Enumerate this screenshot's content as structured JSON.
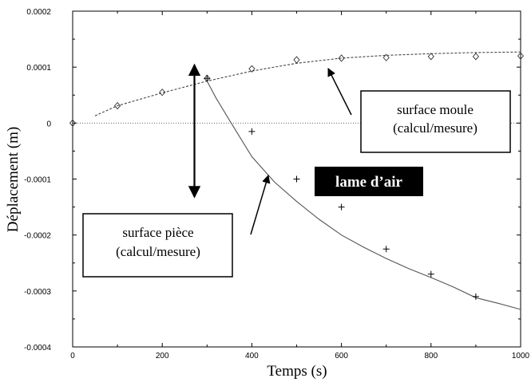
{
  "chart_data": {
    "type": "line",
    "xlabel": "Temps (s)",
    "ylabel": "Déplacement (m)",
    "xlim": [
      0,
      1000
    ],
    "ylim": [
      -0.0004,
      0.0002
    ],
    "x_ticks": [
      "0",
      "200",
      "400",
      "600",
      "800",
      "1000"
    ],
    "y_ticks": [
      "0.0002",
      "0.0001",
      "0",
      "-0.0001",
      "-0.0002",
      "-0.0003",
      "-0.0004"
    ],
    "grid": false,
    "series": [
      {
        "kind": "curve",
        "style": "dashed",
        "x": [
          50,
          100,
          200,
          300,
          400,
          500,
          600,
          700,
          800,
          900,
          1000
        ],
        "y": [
          1.3e-05,
          3.1e-05,
          5.4e-05,
          7.5e-05,
          9.3e-05,
          0.000107,
          0.000116,
          0.000121,
          0.000124,
          0.000126,
          0.000127
        ]
      },
      {
        "kind": "markers",
        "marker": "diamond",
        "x": [
          0,
          100,
          200,
          300,
          400,
          500,
          600,
          700,
          800,
          900,
          1000
        ],
        "y": [
          0.0,
          3.1e-05,
          5.5e-05,
          8e-05,
          9.7e-05,
          0.000113,
          0.000116,
          0.000117,
          0.000119,
          0.000119,
          0.00012
        ]
      },
      {
        "kind": "curve",
        "style": "solid",
        "x": [
          300,
          320,
          350,
          400,
          450,
          500,
          550,
          600,
          650,
          700,
          750,
          800,
          850,
          900,
          950,
          1000
        ],
        "y": [
          7.5e-05,
          4.5e-05,
          5e-06,
          -6e-05,
          -0.000105,
          -0.00014,
          -0.000172,
          -0.0002,
          -0.000222,
          -0.000242,
          -0.00026,
          -0.000276,
          -0.000293,
          -0.000312,
          -0.000322,
          -0.000333
        ]
      },
      {
        "kind": "markers",
        "marker": "plus",
        "x": [
          300,
          400,
          500,
          600,
          700,
          800,
          900
        ],
        "y": [
          8e-05,
          -1.5e-05,
          -0.0001,
          -0.00015,
          -0.000225,
          -0.00027,
          -0.00031
        ]
      }
    ],
    "zero_line": true,
    "annotations": {
      "moule": [
        "surface moule",
        "(calcul/mesure)"
      ],
      "piece": [
        "surface pièce",
        "(calcul/mesure)"
      ],
      "lame": "lame d’air",
      "lame_arrow_y": [
        0.000107,
        -0.000135
      ],
      "moule_arrow_from": [
        558,
        2e-05
      ],
      "moule_arrow_to": [
        510,
        0.0001
      ],
      "piece_arrow_from": [
        404,
        -0.0002
      ],
      "piece_arrow_to": [
        440,
        -0.0001
      ]
    }
  }
}
